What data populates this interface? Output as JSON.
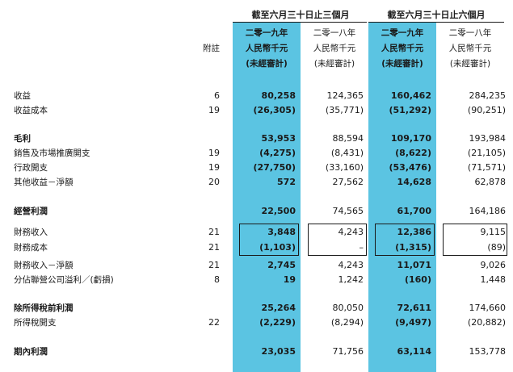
{
  "periods": {
    "three_months": "截至六月三十日止三個月",
    "six_months": "截至六月三十日止六個月"
  },
  "column_headers": [
    {
      "year": "二零一九年",
      "currency": "人民幣千元",
      "status": "(未經審計)"
    },
    {
      "year": "二零一八年",
      "currency": "人民幣千元",
      "status": "(未經審計)"
    },
    {
      "year": "二零一九年",
      "currency": "人民幣千元",
      "status": "(未經審計)"
    },
    {
      "year": "二零一八年",
      "currency": "人民幣千元",
      "status": "(未經審計)"
    }
  ],
  "note_header": "附註",
  "rows": [
    {
      "label": "收益",
      "note": "6",
      "v1": "80,258",
      "v2": "124,365",
      "v3": "160,462",
      "v4": "284,235",
      "bold": false
    },
    {
      "label": "收益成本",
      "note": "19",
      "v1": "(26,305)",
      "v2": "(35,771)",
      "v3": "(51,292)",
      "v4": "(90,251)",
      "bold": false
    },
    {
      "label": "毛利",
      "note": "",
      "v1": "53,953",
      "v2": "88,594",
      "v3": "109,170",
      "v4": "193,984",
      "bold": true
    },
    {
      "label": "銷售及市場推廣開支",
      "note": "19",
      "v1": "(4,275)",
      "v2": "(8,431)",
      "v3": "(8,622)",
      "v4": "(21,105)",
      "bold": false
    },
    {
      "label": "行政開支",
      "note": "19",
      "v1": "(27,750)",
      "v2": "(33,160)",
      "v3": "(53,476)",
      "v4": "(71,571)",
      "bold": false
    },
    {
      "label": "其他收益－淨額",
      "note": "20",
      "v1": "572",
      "v2": "27,562",
      "v3": "14,628",
      "v4": "62,878",
      "bold": false
    },
    {
      "label": "經營利潤",
      "note": "",
      "v1": "22,500",
      "v2": "74,565",
      "v3": "61,700",
      "v4": "164,186",
      "bold": true
    },
    {
      "label": "財務收入",
      "note": "21",
      "v1": "3,848",
      "v2": "4,243",
      "v3": "12,386",
      "v4": "9,115",
      "bold": false
    },
    {
      "label": "財務成本",
      "note": "21",
      "v1": "(1,103)",
      "v2": "–",
      "v3": "(1,315)",
      "v4": "(89)",
      "bold": false
    },
    {
      "label": "財務收入－淨額",
      "note": "21",
      "v1": "2,745",
      "v2": "4,243",
      "v3": "11,071",
      "v4": "9,026",
      "bold": false
    },
    {
      "label": "分佔聯營公司溢利／(虧損)",
      "note": "8",
      "v1": "19",
      "v2": "1,242",
      "v3": "(160)",
      "v4": "1,448",
      "bold": false
    },
    {
      "label": "除所得稅前利潤",
      "note": "",
      "v1": "25,264",
      "v2": "80,050",
      "v3": "72,611",
      "v4": "174,660",
      "bold": true
    },
    {
      "label": "所得稅開支",
      "note": "22",
      "v1": "(2,229)",
      "v2": "(8,294)",
      "v3": "(9,497)",
      "v4": "(20,882)",
      "bold": false
    },
    {
      "label": "期內利潤",
      "note": "",
      "v1": "23,035",
      "v2": "71,756",
      "v3": "63,114",
      "v4": "153,778",
      "bold": true
    }
  ]
}
